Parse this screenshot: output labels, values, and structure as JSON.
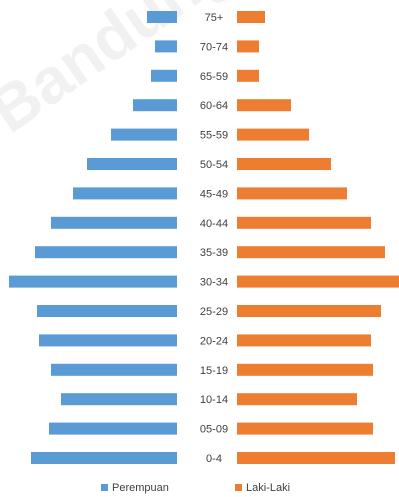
{
  "chart_data": {
    "type": "bar",
    "orientation": "horizontal",
    "layout": "population-pyramid",
    "categories": [
      "75+",
      "70-74",
      "65-59",
      "60-64",
      "55-59",
      "50-54",
      "45-49",
      "40-44",
      "35-39",
      "30-34",
      "25-29",
      "20-24",
      "15-19",
      "10-14",
      "05-09",
      "0-4"
    ],
    "series": [
      {
        "name": "Perempuan",
        "color": "#5b9bd5",
        "side": "left",
        "values": [
          30,
          22,
          26,
          44,
          66,
          90,
          104,
          126,
          142,
          168,
          140,
          138,
          126,
          116,
          128,
          146
        ]
      },
      {
        "name": "Laki-Laki",
        "color": "#ed7d31",
        "side": "right",
        "values": [
          28,
          22,
          22,
          54,
          72,
          94,
          110,
          134,
          148,
          162,
          144,
          134,
          136,
          120,
          136,
          158
        ]
      }
    ],
    "title": "",
    "xlabel": "",
    "ylabel": "",
    "legend": "bottom",
    "grid": false
  },
  "watermark": "Bandung"
}
